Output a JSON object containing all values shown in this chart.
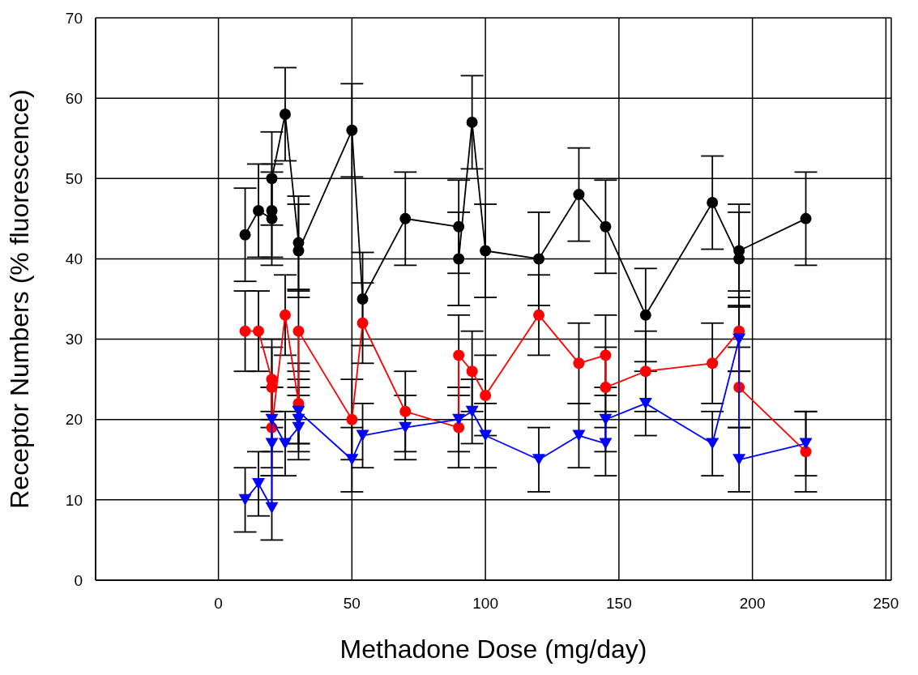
{
  "chart_data": {
    "type": "line",
    "xlabel": "Methadone Dose (mg/day)",
    "ylabel": "Receptor Numbers (% fluorescence)",
    "xlim": [
      -46,
      252
    ],
    "xticks": [
      0,
      50,
      100,
      150,
      200,
      250
    ],
    "ylim": [
      0,
      70
    ],
    "yticks": [
      0,
      10,
      20,
      30,
      40,
      50,
      60,
      70
    ],
    "grid": true,
    "series": [
      {
        "color": "#000000",
        "marker": "circle",
        "x": [
          10,
          15,
          20,
          20,
          20,
          25,
          30,
          30,
          50,
          54,
          70,
          90,
          90,
          95,
          100,
          120,
          135,
          145,
          160,
          185,
          195,
          195,
          220
        ],
        "values": [
          43,
          46,
          45,
          46,
          50,
          58,
          42,
          41,
          56,
          35,
          45,
          44,
          40,
          57,
          41,
          40,
          48,
          44,
          33,
          47,
          40,
          41,
          45
        ],
        "errors": [
          5.8,
          5.8,
          5.8,
          5.8,
          5.8,
          5.8,
          5.8,
          5.8,
          5.8,
          5.8,
          5.8,
          5.8,
          5.8,
          5.8,
          5.8,
          5.8,
          5.8,
          5.8,
          5.8,
          5.8,
          5.8,
          5.8,
          5.8
        ]
      },
      {
        "color": "#ff0000",
        "marker": "circle",
        "x": [
          10,
          15,
          20,
          20,
          20,
          25,
          30,
          30,
          50,
          54,
          70,
          90,
          90,
          95,
          100,
          120,
          135,
          145,
          145,
          160,
          185,
          195,
          195,
          220
        ],
        "values": [
          31,
          31,
          25,
          24,
          19,
          33,
          22,
          31,
          20,
          32,
          21,
          19,
          28,
          26,
          23,
          33,
          27,
          28,
          24,
          26,
          27,
          31,
          24,
          16
        ],
        "errors": [
          5,
          5,
          5,
          5,
          5,
          5,
          5,
          5,
          5,
          5,
          5,
          5,
          5,
          5,
          5,
          5,
          5,
          5,
          5,
          5,
          5,
          5,
          5,
          5
        ]
      },
      {
        "color": "#0000ff",
        "marker": "triangle",
        "x": [
          10,
          15,
          20,
          20,
          20,
          25,
          30,
          30,
          30,
          50,
          54,
          70,
          90,
          95,
          100,
          120,
          135,
          145,
          145,
          160,
          185,
          195,
          195,
          220
        ],
        "values": [
          10,
          12,
          9,
          17,
          20,
          17,
          19,
          20,
          21,
          15,
          18,
          19,
          20,
          21,
          18,
          15,
          18,
          17,
          20,
          22,
          17,
          30,
          15,
          17
        ],
        "errors": [
          4,
          4,
          4,
          4,
          4,
          4,
          4,
          4,
          4,
          4,
          4,
          4,
          4,
          4,
          4,
          4,
          4,
          4,
          4,
          4,
          4,
          4,
          4,
          4
        ]
      }
    ]
  }
}
